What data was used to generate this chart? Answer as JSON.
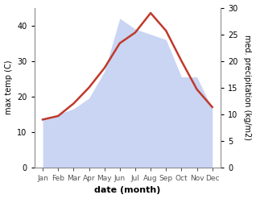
{
  "months": [
    "Jan",
    "Feb",
    "Mar",
    "Apr",
    "May",
    "Jun",
    "Jul",
    "Aug",
    "Sep",
    "Oct",
    "Nov",
    "Dec"
  ],
  "temperature": [
    13.5,
    14.5,
    18.0,
    22.5,
    28.0,
    35.0,
    38.0,
    43.5,
    38.5,
    30.0,
    22.0,
    17.0
  ],
  "precipitation": [
    9,
    10,
    11,
    13,
    18,
    28,
    26,
    25,
    24,
    17,
    17,
    11
  ],
  "temp_color": "#c0392b",
  "precip_fill_color": "#b8c8f0",
  "ylabel_left": "max temp (C)",
  "ylabel_right": "med. precipitation (kg/m2)",
  "xlabel": "date (month)",
  "ylim_left": [
    0,
    45
  ],
  "ylim_right": [
    0,
    30
  ],
  "yticks_left": [
    0,
    10,
    20,
    30,
    40
  ],
  "yticks_right": [
    0,
    5,
    10,
    15,
    20,
    25,
    30
  ],
  "temp_linewidth": 1.8,
  "background_color": "#ffffff"
}
